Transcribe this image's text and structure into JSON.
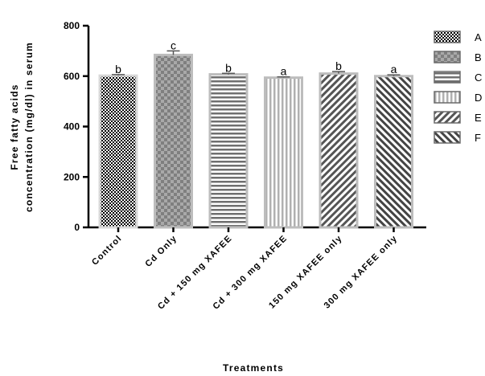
{
  "chart_data": {
    "type": "bar",
    "xlabel": "Treatments",
    "ylabel": [
      "Free fatty acids",
      "concentration (mg/dl) in serum"
    ],
    "ylim": [
      0,
      800
    ],
    "yticks": [
      "0",
      "200",
      "400",
      "600",
      "800"
    ],
    "grid": false,
    "legend_position": "right",
    "categories": [
      "Control",
      "Cd Only",
      "Cd + 150 mg XAFEE",
      "Cd + 300 mg XAFEE",
      "150 mg XAFEE only",
      "300 mg XAFEE only"
    ],
    "values": [
      602,
      684,
      607,
      594,
      610,
      600
    ],
    "errors": [
      4,
      16,
      4,
      3,
      8,
      5
    ],
    "significance_letters": [
      "b",
      "c",
      "b",
      "a",
      "b",
      "a"
    ],
    "legend": [
      "A",
      "B",
      "C",
      "D",
      "E",
      "F"
    ],
    "series_styles": [
      {
        "pattern": "checker-fine",
        "color": "#000000"
      },
      {
        "pattern": "checker-coarse",
        "color": "#8a8a8a"
      },
      {
        "pattern": "hlines",
        "color": "#7a7a7a"
      },
      {
        "pattern": "vlines",
        "color": "#b5b5b5"
      },
      {
        "pattern": "diag-right",
        "color": "#5a5a5a"
      },
      {
        "pattern": "diag-left",
        "color": "#4a4a4a"
      }
    ]
  }
}
